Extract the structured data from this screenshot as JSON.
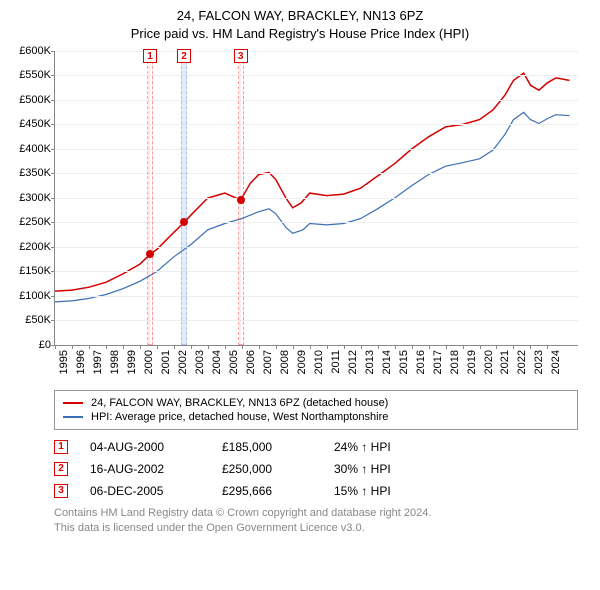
{
  "title": {
    "line1": "24, FALCON WAY, BRACKLEY, NN13 6PZ",
    "line2": "Price paid vs. HM Land Registry's House Price Index (HPI)"
  },
  "chart": {
    "type": "line",
    "background_color": "#ffffff",
    "grid_color": "#eeeeee",
    "axis_color": "#888888",
    "font_size_ticks": 11,
    "font_size_title": 13,
    "ylim": [
      0,
      600000
    ],
    "ytick_step": 50000,
    "yticks": [
      "£0",
      "£50K",
      "£100K",
      "£150K",
      "£200K",
      "£250K",
      "£300K",
      "£350K",
      "£400K",
      "£450K",
      "£500K",
      "£550K",
      "£600K"
    ],
    "xlim": [
      1995,
      2025.8
    ],
    "xticks": [
      1995,
      1996,
      1997,
      1998,
      1999,
      2000,
      2001,
      2002,
      2003,
      2004,
      2005,
      2006,
      2007,
      2008,
      2009,
      2010,
      2011,
      2012,
      2013,
      2014,
      2015,
      2016,
      2017,
      2018,
      2019,
      2020,
      2021,
      2022,
      2023,
      2024
    ],
    "series": [
      {
        "id": "price_paid",
        "label": "24, FALCON WAY, BRACKLEY, NN13 6PZ (detached house)",
        "color": "#d40000",
        "line_width": 1.5,
        "points": [
          [
            1995.0,
            110000
          ],
          [
            1996.0,
            112000
          ],
          [
            1997.0,
            118000
          ],
          [
            1998.0,
            128000
          ],
          [
            1999.0,
            145000
          ],
          [
            2000.0,
            165000
          ],
          [
            2000.6,
            185000
          ],
          [
            2001.0,
            195000
          ],
          [
            2002.0,
            230000
          ],
          [
            2002.6,
            250000
          ],
          [
            2003.0,
            265000
          ],
          [
            2004.0,
            300000
          ],
          [
            2005.0,
            310000
          ],
          [
            2005.93,
            295666
          ],
          [
            2006.5,
            330000
          ],
          [
            2007.0,
            348000
          ],
          [
            2007.6,
            352000
          ],
          [
            2008.0,
            338000
          ],
          [
            2008.6,
            300000
          ],
          [
            2009.0,
            280000
          ],
          [
            2009.5,
            290000
          ],
          [
            2010.0,
            310000
          ],
          [
            2011.0,
            305000
          ],
          [
            2012.0,
            308000
          ],
          [
            2013.0,
            320000
          ],
          [
            2014.0,
            345000
          ],
          [
            2015.0,
            370000
          ],
          [
            2016.0,
            400000
          ],
          [
            2017.0,
            425000
          ],
          [
            2018.0,
            445000
          ],
          [
            2019.0,
            450000
          ],
          [
            2020.0,
            460000
          ],
          [
            2020.8,
            480000
          ],
          [
            2021.5,
            510000
          ],
          [
            2022.0,
            540000
          ],
          [
            2022.6,
            555000
          ],
          [
            2023.0,
            530000
          ],
          [
            2023.5,
            520000
          ],
          [
            2024.0,
            535000
          ],
          [
            2024.5,
            545000
          ],
          [
            2025.3,
            540000
          ]
        ]
      },
      {
        "id": "hpi",
        "label": "HPI: Average price, detached house, West Northamptonshire",
        "color": "#3b6fb6",
        "line_width": 1.2,
        "points": [
          [
            1995.0,
            88000
          ],
          [
            1996.0,
            90000
          ],
          [
            1997.0,
            95000
          ],
          [
            1998.0,
            103000
          ],
          [
            1999.0,
            115000
          ],
          [
            2000.0,
            130000
          ],
          [
            2001.0,
            150000
          ],
          [
            2002.0,
            180000
          ],
          [
            2003.0,
            205000
          ],
          [
            2004.0,
            235000
          ],
          [
            2005.0,
            248000
          ],
          [
            2006.0,
            258000
          ],
          [
            2007.0,
            272000
          ],
          [
            2007.6,
            278000
          ],
          [
            2008.0,
            268000
          ],
          [
            2008.6,
            240000
          ],
          [
            2009.0,
            228000
          ],
          [
            2009.6,
            235000
          ],
          [
            2010.0,
            248000
          ],
          [
            2011.0,
            245000
          ],
          [
            2012.0,
            248000
          ],
          [
            2013.0,
            258000
          ],
          [
            2014.0,
            278000
          ],
          [
            2015.0,
            300000
          ],
          [
            2016.0,
            325000
          ],
          [
            2017.0,
            348000
          ],
          [
            2018.0,
            365000
          ],
          [
            2019.0,
            372000
          ],
          [
            2020.0,
            380000
          ],
          [
            2020.8,
            398000
          ],
          [
            2021.5,
            430000
          ],
          [
            2022.0,
            460000
          ],
          [
            2022.6,
            475000
          ],
          [
            2023.0,
            460000
          ],
          [
            2023.5,
            452000
          ],
          [
            2024.0,
            462000
          ],
          [
            2024.5,
            470000
          ],
          [
            2025.3,
            468000
          ]
        ]
      }
    ],
    "sale_bands": [
      {
        "n": "1",
        "x": 2000.6,
        "width_years": 0.35,
        "style": "red"
      },
      {
        "n": "2",
        "x": 2002.6,
        "width_years": 0.35,
        "style": "blue"
      },
      {
        "n": "3",
        "x": 2005.93,
        "width_years": 0.35,
        "style": "red"
      }
    ],
    "sale_points": [
      {
        "n": "1",
        "x": 2000.6,
        "y": 185000,
        "color": "#d40000"
      },
      {
        "n": "2",
        "x": 2002.6,
        "y": 250000,
        "color": "#d40000"
      },
      {
        "n": "3",
        "x": 2005.93,
        "y": 295666,
        "color": "#d40000"
      }
    ]
  },
  "legend": {
    "items": [
      {
        "color": "#d40000",
        "label": "24, FALCON WAY, BRACKLEY, NN13 6PZ (detached house)"
      },
      {
        "color": "#3b6fb6",
        "label": "HPI: Average price, detached house, West Northamptonshire"
      }
    ]
  },
  "sales": [
    {
      "n": "1",
      "date": "04-AUG-2000",
      "price": "£185,000",
      "gap": "24% ↑ HPI"
    },
    {
      "n": "2",
      "date": "16-AUG-2002",
      "price": "£250,000",
      "gap": "30% ↑ HPI"
    },
    {
      "n": "3",
      "date": "06-DEC-2005",
      "price": "£295,666",
      "gap": "15% ↑ HPI"
    }
  ],
  "footer": {
    "line1": "Contains HM Land Registry data © Crown copyright and database right 2024.",
    "line2": "This data is licensed under the Open Government Licence v3.0."
  }
}
